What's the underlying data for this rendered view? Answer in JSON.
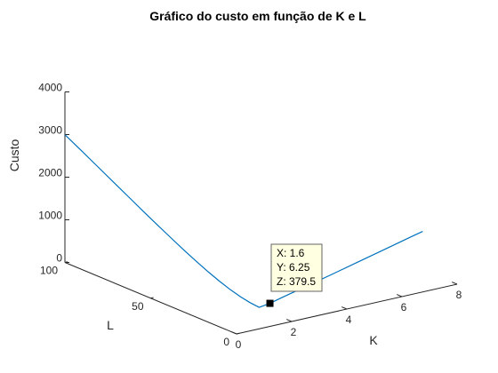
{
  "chart_data": {
    "type": "line",
    "title": "Gráfico do custo em função de K e L",
    "xlabel": "K",
    "ylabel": "L",
    "zlabel": "Custo",
    "xlim": [
      0,
      8
    ],
    "ylim": [
      0,
      100
    ],
    "zlim": [
      0,
      4000
    ],
    "x_ticks": [
      "0",
      "2",
      "4",
      "6",
      "8"
    ],
    "y_ticks": [
      "0",
      "50",
      "100"
    ],
    "z_ticks": [
      "0",
      "1000",
      "2000",
      "3000",
      "4000"
    ],
    "series": [
      {
        "color": "#0072bd",
        "points": [
          [
            0.0,
            100.0,
            2997
          ],
          [
            0.1,
            91.7,
            2735
          ],
          [
            0.2,
            83.8,
            2477
          ],
          [
            0.3,
            76.2,
            2227
          ],
          [
            0.4,
            68.9,
            1984
          ],
          [
            0.5,
            62.0,
            1749
          ],
          [
            0.6,
            55.4,
            1526
          ],
          [
            0.7,
            49.1,
            1314
          ],
          [
            0.8,
            43.2,
            1114
          ],
          [
            0.9,
            37.6,
            929
          ],
          [
            1.0,
            32.3,
            760
          ],
          [
            1.1,
            27.4,
            609
          ],
          [
            1.2,
            22.8,
            478
          ],
          [
            1.3,
            18.5,
            369
          ],
          [
            1.4,
            14.6,
            284
          ],
          [
            1.5,
            10.9,
            222
          ],
          [
            1.6,
            6.25,
            379.5
          ],
          [
            2.0,
            6.7,
            430
          ],
          [
            3.0,
            7.5,
            555
          ],
          [
            4.0,
            8.5,
            675
          ],
          [
            5.0,
            9.5,
            800
          ],
          [
            6.0,
            10.5,
            925
          ],
          [
            7.0,
            11.5,
            1050
          ],
          [
            7.5,
            12.0,
            1110
          ]
        ]
      }
    ],
    "datatip": {
      "x": 1.6,
      "y": 6.25,
      "z": 379.5,
      "lines": [
        "X: 1.6",
        "Y: 6.25",
        "Z: 379.5"
      ]
    }
  }
}
